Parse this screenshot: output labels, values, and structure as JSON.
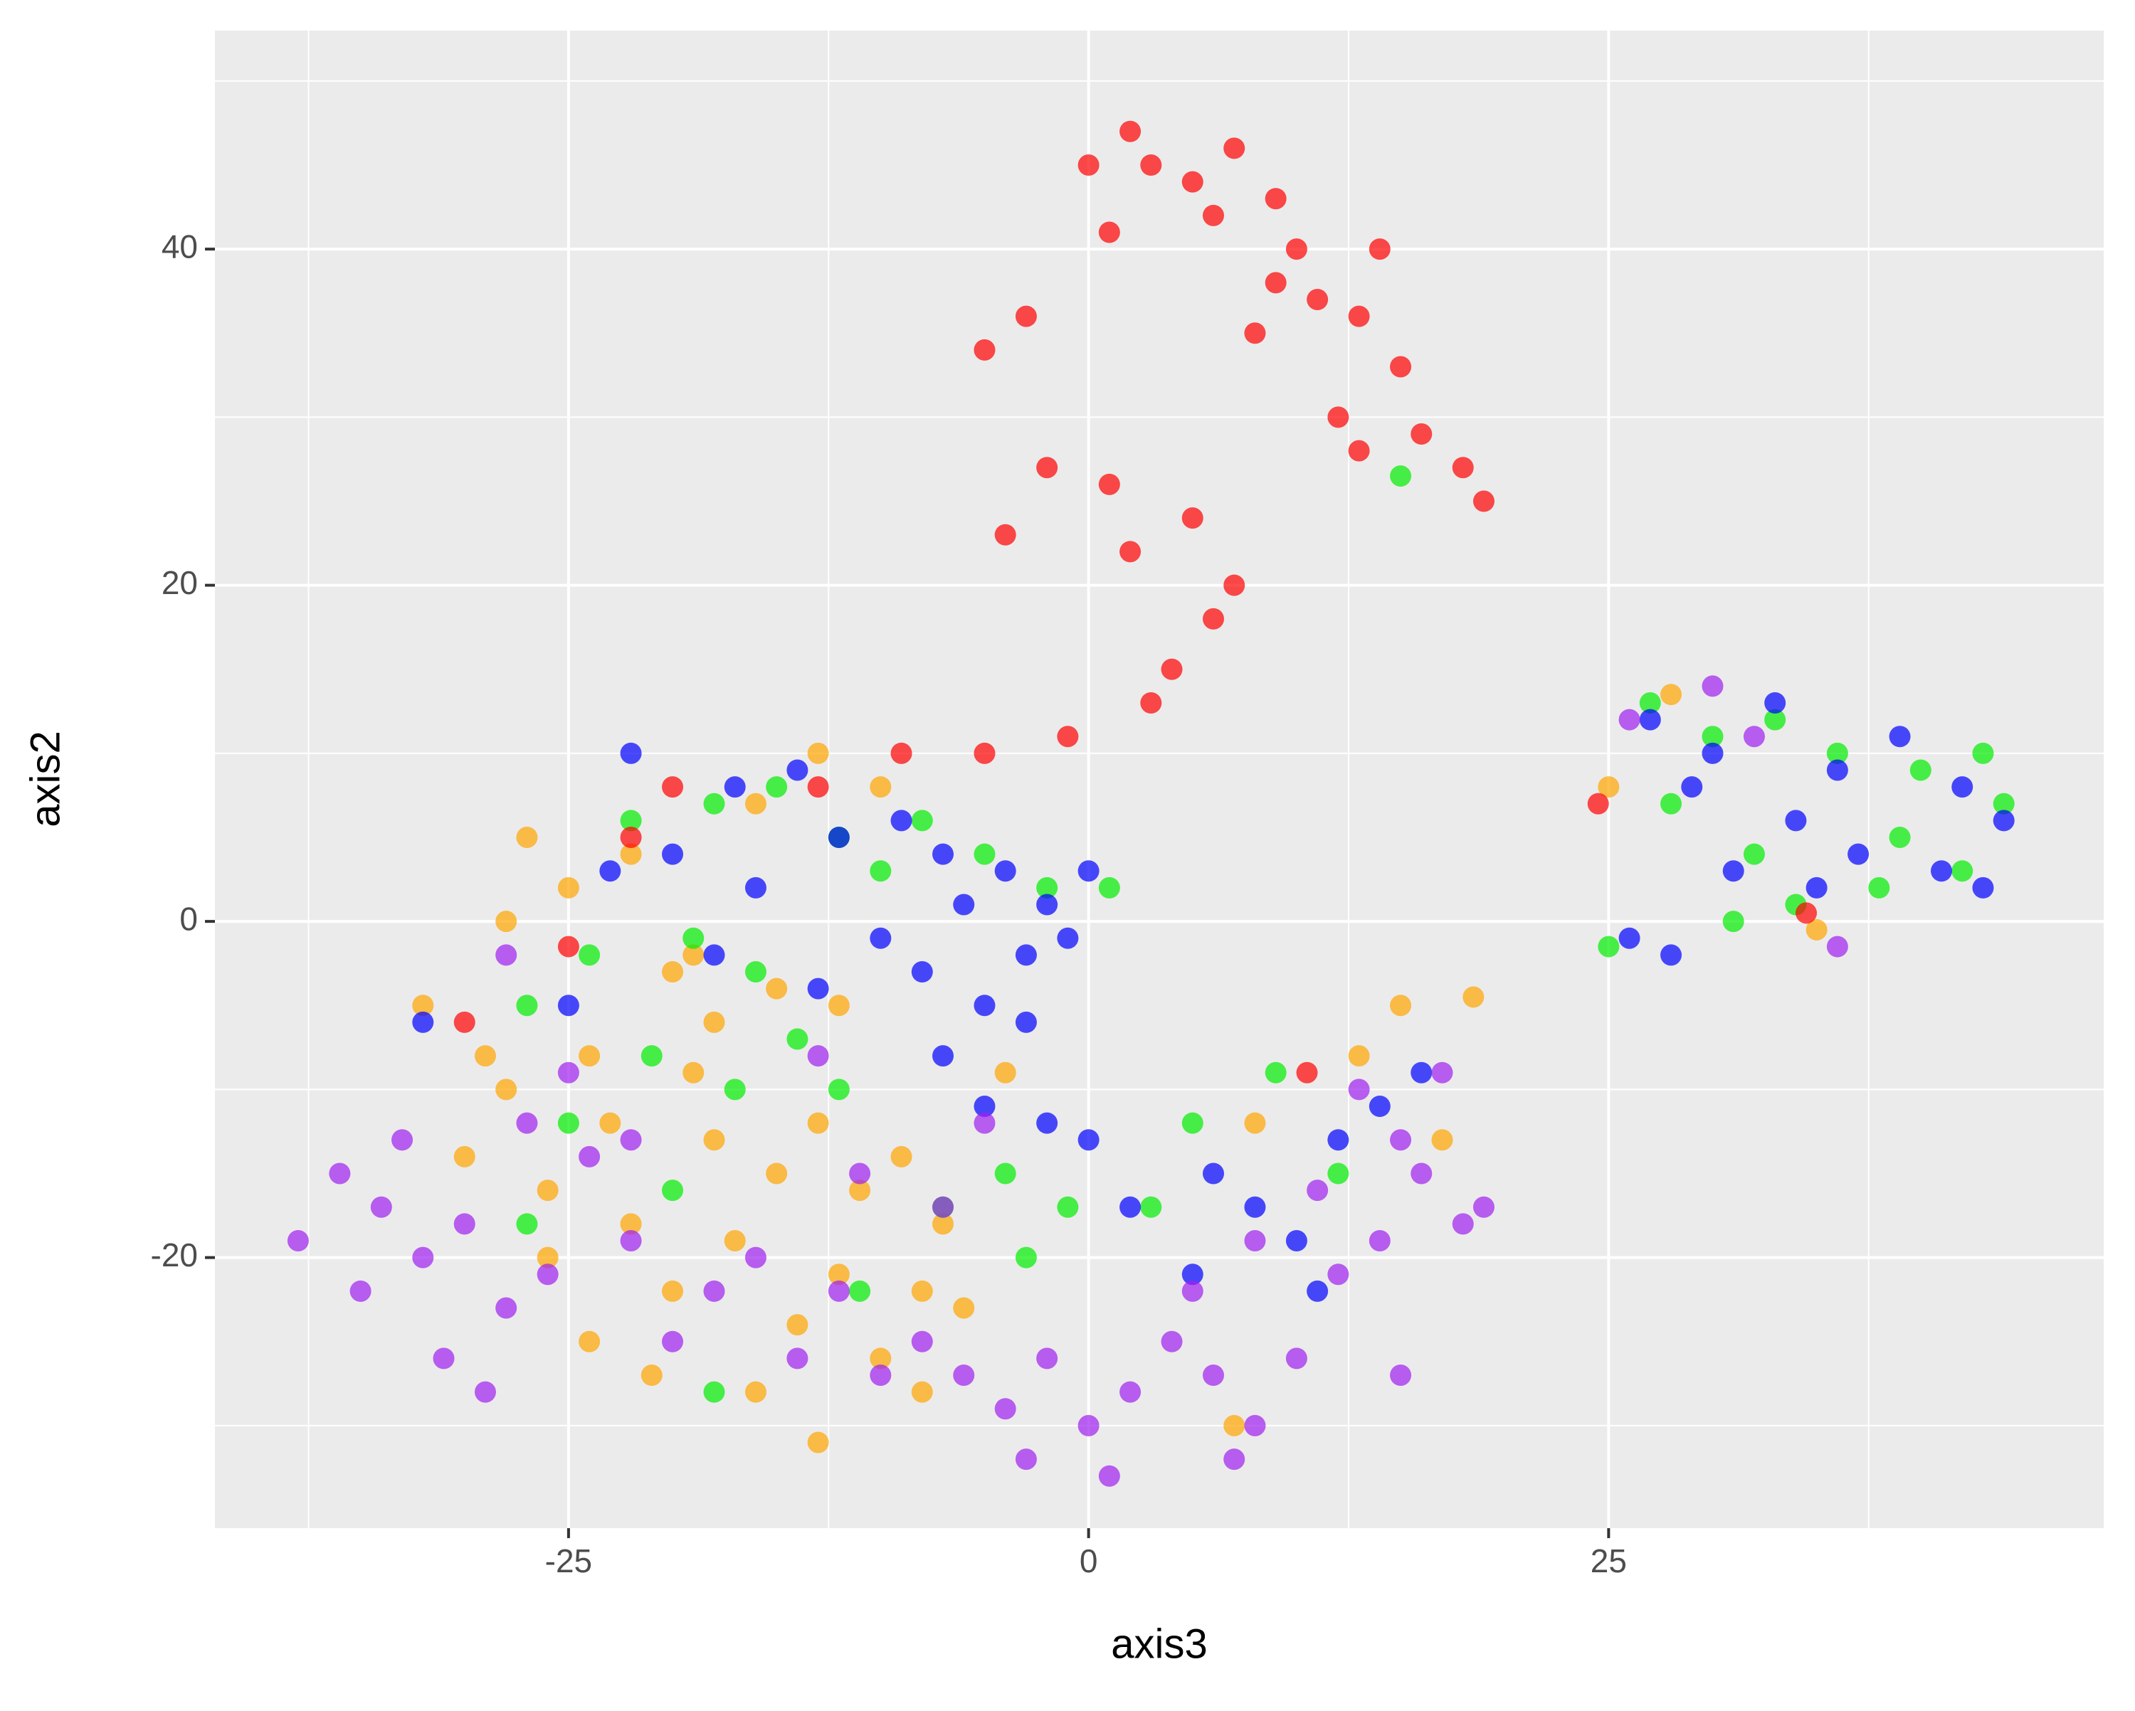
{
  "chart_data": {
    "type": "scatter",
    "x_label": "axis3",
    "y_label": "axis2",
    "xlim": [
      -42,
      48.8
    ],
    "ylim": [
      -36.1,
      53
    ],
    "xticks": [
      -25,
      0,
      25
    ],
    "yticks": [
      -20,
      0,
      20,
      40
    ],
    "x_minor_grid": [
      -37.5,
      -12.5,
      12.5,
      37.5
    ],
    "y_minor_grid": [
      -30,
      -10,
      10,
      30,
      50
    ],
    "grid": true,
    "opacity": 0.7,
    "series": [
      {
        "color": "#ffa500",
        "x": [
          -27,
          -25,
          -28,
          -22,
          -20,
          -18,
          -24,
          -28,
          -30,
          -26,
          -22,
          -20,
          -17,
          -14,
          -12,
          -10,
          -15,
          -13,
          -11,
          -9,
          -7,
          -18,
          -23,
          -26,
          -24,
          -21,
          -16,
          -13,
          -8,
          -6,
          -32,
          -29,
          -19,
          -15,
          -12,
          -10,
          -13,
          -16,
          -8,
          15,
          18.5,
          17,
          13,
          8,
          7,
          -19,
          -4,
          28,
          35,
          25
        ],
        "y": [
          5,
          2,
          0,
          4,
          -3,
          -6,
          -8,
          -10,
          -14,
          -16,
          -18,
          -22,
          -19,
          -24,
          -21,
          -26,
          -15,
          -12,
          -16,
          -14,
          -18,
          -13,
          -12,
          -20,
          -25,
          -27,
          -28,
          -31,
          -28,
          -23,
          -5,
          -8,
          -9,
          -4,
          -5,
          8,
          10,
          7,
          -22,
          -5,
          -4.5,
          -13,
          -8,
          -12,
          -30,
          -2,
          -9,
          13.5,
          -0.5,
          8
        ]
      },
      {
        "color": "#00ee00",
        "x": [
          -27,
          -24,
          -22,
          -18,
          -15,
          -12,
          -10,
          -8,
          -5,
          -2,
          -16,
          -19,
          -21,
          -17,
          -14,
          -25,
          -20,
          -11,
          -7,
          -4,
          -1,
          1,
          -18,
          -3,
          5,
          9,
          12,
          3,
          27,
          30,
          33,
          36,
          40,
          43,
          44,
          42,
          38,
          34,
          31,
          28,
          25,
          32,
          39,
          15,
          -27,
          -12
        ],
        "y": [
          -5,
          -2,
          6,
          7,
          8,
          5,
          3,
          6,
          4,
          2,
          -3,
          -1,
          -8,
          -10,
          -7,
          -12,
          -16,
          -22,
          -17,
          -15,
          -17,
          2,
          -28,
          -20,
          -12,
          -9,
          -15,
          -17,
          13,
          11,
          12,
          10,
          9,
          10,
          7,
          3,
          2,
          1,
          0,
          7,
          -1.5,
          4,
          5,
          26.5,
          -18,
          -10
        ]
      },
      {
        "color": "#ff0000",
        "x": [
          2,
          3,
          5,
          7,
          9,
          10,
          8,
          6,
          1,
          -3,
          -5,
          0,
          11,
          13,
          15,
          12,
          9,
          14,
          16,
          18,
          19,
          13,
          -2,
          1,
          2,
          5,
          6,
          4,
          3,
          -4,
          7,
          -1,
          -5,
          -9,
          -13,
          -20,
          -22,
          24.5,
          -30,
          10.5,
          -25,
          34.5
        ],
        "y": [
          47,
          45,
          44,
          46,
          38,
          40,
          35,
          42,
          41,
          36,
          34,
          45,
          37,
          36,
          33,
          30,
          43,
          40,
          29,
          27,
          25,
          28,
          27,
          26,
          22,
          24,
          18,
          15,
          13,
          23,
          20,
          11,
          10,
          10,
          8,
          8,
          5,
          7,
          -6,
          -9,
          -1.5,
          0.5
        ]
      },
      {
        "color": "#0000ff",
        "x": [
          -22,
          -23,
          -20,
          -17,
          -14,
          -12,
          -9,
          -7,
          -6,
          -4,
          -2,
          0,
          -1,
          -3,
          -5,
          -8,
          -10,
          -13,
          -16,
          -18,
          -25,
          -32,
          -7,
          -2,
          0,
          2,
          -5,
          -3,
          6,
          8,
          10,
          12,
          14,
          11,
          5,
          16,
          27,
          30,
          33,
          36,
          39,
          42,
          44,
          41,
          37,
          34,
          31,
          29,
          35,
          26,
          28,
          43
        ],
        "y": [
          10,
          3,
          4,
          8,
          9,
          5,
          6,
          4,
          1,
          3,
          1,
          3,
          -1,
          -2,
          -5,
          -3,
          -1,
          -4,
          2,
          -2,
          -5,
          -6,
          -8,
          -12,
          -13,
          -17,
          -11,
          -6,
          -15,
          -17,
          -19,
          -13,
          -11,
          -22,
          -21,
          -9,
          12,
          10,
          13,
          9,
          11,
          8,
          6,
          3,
          4,
          6,
          3,
          8,
          2,
          -1,
          -2,
          2
        ]
      },
      {
        "color": "#a020f0",
        "x": [
          -38,
          -36,
          -34,
          -35,
          -32,
          -30,
          -28,
          -31,
          -33,
          -29,
          -26,
          -24,
          -22,
          -20,
          -18,
          -16,
          -14,
          -12,
          -10,
          -8,
          -6,
          -4,
          -2,
          0,
          2,
          4,
          6,
          8,
          10,
          -3,
          1,
          7,
          5,
          8,
          11,
          13,
          15,
          17,
          18,
          14,
          12,
          16,
          19,
          -27,
          -25,
          -22,
          -11,
          -7,
          -28,
          30,
          32,
          26,
          36,
          15,
          -5,
          -13
        ],
        "y": [
          -19,
          -15,
          -17,
          -22,
          -20,
          -18,
          -23,
          -26,
          -13,
          -28,
          -21,
          -14,
          -19,
          -25,
          -22,
          -20,
          -26,
          -22,
          -27,
          -25,
          -27,
          -29,
          -26,
          -30,
          -28,
          -25,
          -27,
          -30,
          -26,
          -32,
          -33,
          -32,
          -22,
          -19,
          -16,
          -10,
          -13,
          -9,
          -18,
          -19,
          -21,
          -15,
          -17,
          -12,
          -9,
          -13,
          -15,
          -17,
          -2,
          14,
          11,
          12,
          -1.5,
          -27,
          -12,
          -8
        ]
      }
    ]
  }
}
